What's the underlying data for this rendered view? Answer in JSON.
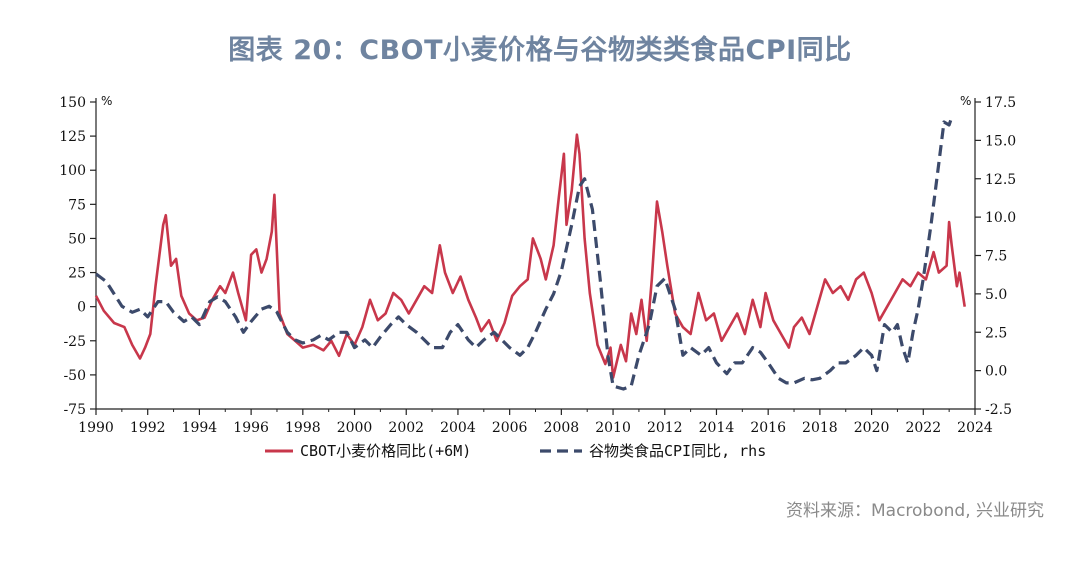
{
  "title": "图表 20：CBOT小麦价格与谷物类类食品CPI同比",
  "source": "资料来源：Macrobond, 兴业研究",
  "chart_data": {
    "type": "line",
    "left_axis": {
      "unit": "%",
      "ylim": [
        -75,
        150
      ],
      "ticks": [
        150,
        125,
        100,
        75,
        50,
        25,
        0,
        -25,
        -50,
        -75
      ]
    },
    "right_axis": {
      "unit": "%",
      "ylim": [
        -2.5,
        17.5
      ],
      "ticks": [
        17.5,
        15.0,
        12.5,
        10.0,
        7.5,
        5.0,
        2.5,
        0.0,
        -2.5
      ]
    },
    "x_axis": {
      "xlim": [
        1990,
        2024
      ],
      "ticks": [
        1990,
        1992,
        1994,
        1996,
        1998,
        2000,
        2002,
        2004,
        2006,
        2008,
        2010,
        2012,
        2014,
        2016,
        2018,
        2020,
        2022,
        2024
      ]
    },
    "grid": false,
    "legend_position": "bottom",
    "colors": {
      "wheat": "#c8374b",
      "cpi": "#3c4a6b"
    },
    "series": [
      {
        "name": "CBOT小麦价格同比(+6M)",
        "axis": "left",
        "style": "solid",
        "points": [
          [
            1990,
            8
          ],
          [
            1990.3,
            -3
          ],
          [
            1990.7,
            -12
          ],
          [
            1991.1,
            -15
          ],
          [
            1991.4,
            -28
          ],
          [
            1991.7,
            -38
          ],
          [
            1991.9,
            -30
          ],
          [
            1992.1,
            -20
          ],
          [
            1992.3,
            15
          ],
          [
            1992.6,
            60
          ],
          [
            1992.7,
            67
          ],
          [
            1992.9,
            30
          ],
          [
            1993.1,
            35
          ],
          [
            1993.3,
            8
          ],
          [
            1993.6,
            -5
          ],
          [
            1993.9,
            -10
          ],
          [
            1994.2,
            -8
          ],
          [
            1994.5,
            5
          ],
          [
            1994.8,
            15
          ],
          [
            1995.0,
            10
          ],
          [
            1995.3,
            25
          ],
          [
            1995.5,
            10
          ],
          [
            1995.8,
            -10
          ],
          [
            1996.0,
            38
          ],
          [
            1996.2,
            42
          ],
          [
            1996.4,
            25
          ],
          [
            1996.6,
            35
          ],
          [
            1996.8,
            55
          ],
          [
            1996.9,
            82
          ],
          [
            1997.1,
            -5
          ],
          [
            1997.4,
            -20
          ],
          [
            1997.7,
            -25
          ],
          [
            1998.0,
            -30
          ],
          [
            1998.4,
            -28
          ],
          [
            1998.8,
            -32
          ],
          [
            1999.1,
            -25
          ],
          [
            1999.4,
            -36
          ],
          [
            1999.7,
            -20
          ],
          [
            2000.0,
            -28
          ],
          [
            2000.3,
            -15
          ],
          [
            2000.6,
            5
          ],
          [
            2000.9,
            -10
          ],
          [
            2001.2,
            -5
          ],
          [
            2001.5,
            10
          ],
          [
            2001.8,
            5
          ],
          [
            2002.1,
            -5
          ],
          [
            2002.4,
            5
          ],
          [
            2002.7,
            15
          ],
          [
            2003.0,
            10
          ],
          [
            2003.3,
            45
          ],
          [
            2003.5,
            25
          ],
          [
            2003.8,
            10
          ],
          [
            2004.1,
            22
          ],
          [
            2004.4,
            5
          ],
          [
            2004.7,
            -8
          ],
          [
            2004.9,
            -18
          ],
          [
            2005.2,
            -10
          ],
          [
            2005.5,
            -25
          ],
          [
            2005.8,
            -12
          ],
          [
            2006.1,
            8
          ],
          [
            2006.4,
            15
          ],
          [
            2006.7,
            20
          ],
          [
            2006.9,
            50
          ],
          [
            2007.2,
            35
          ],
          [
            2007.4,
            20
          ],
          [
            2007.7,
            45
          ],
          [
            2007.9,
            80
          ],
          [
            2008.1,
            112
          ],
          [
            2008.2,
            60
          ],
          [
            2008.4,
            85
          ],
          [
            2008.6,
            126
          ],
          [
            2008.7,
            112
          ],
          [
            2008.9,
            50
          ],
          [
            2009.1,
            10
          ],
          [
            2009.4,
            -28
          ],
          [
            2009.7,
            -42
          ],
          [
            2009.9,
            -30
          ],
          [
            2010.0,
            -52
          ],
          [
            2010.3,
            -28
          ],
          [
            2010.5,
            -40
          ],
          [
            2010.7,
            -5
          ],
          [
            2010.9,
            -20
          ],
          [
            2011.1,
            5
          ],
          [
            2011.3,
            -25
          ],
          [
            2011.5,
            20
          ],
          [
            2011.7,
            77
          ],
          [
            2011.9,
            55
          ],
          [
            2012.1,
            30
          ],
          [
            2012.4,
            -5
          ],
          [
            2012.7,
            -15
          ],
          [
            2013.0,
            -20
          ],
          [
            2013.3,
            10
          ],
          [
            2013.6,
            -10
          ],
          [
            2013.9,
            -5
          ],
          [
            2014.2,
            -25
          ],
          [
            2014.5,
            -15
          ],
          [
            2014.8,
            -5
          ],
          [
            2015.1,
            -20
          ],
          [
            2015.4,
            5
          ],
          [
            2015.7,
            -15
          ],
          [
            2015.9,
            10
          ],
          [
            2016.2,
            -10
          ],
          [
            2016.5,
            -20
          ],
          [
            2016.8,
            -30
          ],
          [
            2017.0,
            -15
          ],
          [
            2017.3,
            -8
          ],
          [
            2017.6,
            -20
          ],
          [
            2017.9,
            0
          ],
          [
            2018.2,
            20
          ],
          [
            2018.5,
            10
          ],
          [
            2018.8,
            15
          ],
          [
            2019.1,
            5
          ],
          [
            2019.4,
            20
          ],
          [
            2019.7,
            25
          ],
          [
            2020.0,
            10
          ],
          [
            2020.3,
            -10
          ],
          [
            2020.6,
            0
          ],
          [
            2020.9,
            10
          ],
          [
            2021.2,
            20
          ],
          [
            2021.5,
            15
          ],
          [
            2021.8,
            25
          ],
          [
            2022.1,
            20
          ],
          [
            2022.4,
            40
          ],
          [
            2022.6,
            25
          ],
          [
            2022.9,
            30
          ],
          [
            2023.0,
            62
          ],
          [
            2023.1,
            45
          ],
          [
            2023.3,
            15
          ],
          [
            2023.4,
            25
          ],
          [
            2023.6,
            0
          ]
        ]
      },
      {
        "name": "谷物类食品CPI同比, rhs",
        "axis": "right",
        "style": "dashed",
        "points": [
          [
            1990,
            6.3
          ],
          [
            1990.4,
            5.8
          ],
          [
            1990.7,
            5.0
          ],
          [
            1991.0,
            4.2
          ],
          [
            1991.4,
            3.8
          ],
          [
            1991.7,
            4.0
          ],
          [
            1992.0,
            3.5
          ],
          [
            1992.4,
            4.5
          ],
          [
            1992.7,
            4.5
          ],
          [
            1993.0,
            3.8
          ],
          [
            1993.4,
            3.2
          ],
          [
            1993.7,
            3.5
          ],
          [
            1994.0,
            3.0
          ],
          [
            1994.4,
            4.5
          ],
          [
            1994.7,
            4.8
          ],
          [
            1995.0,
            4.5
          ],
          [
            1995.4,
            3.5
          ],
          [
            1995.7,
            2.5
          ],
          [
            1996.0,
            3.2
          ],
          [
            1996.4,
            4.0
          ],
          [
            1996.7,
            4.2
          ],
          [
            1997.0,
            3.8
          ],
          [
            1997.4,
            2.5
          ],
          [
            1997.7,
            2.0
          ],
          [
            1998.0,
            1.8
          ],
          [
            1998.4,
            2.0
          ],
          [
            1998.7,
            2.3
          ],
          [
            1999.0,
            2.0
          ],
          [
            1999.4,
            2.5
          ],
          [
            1999.7,
            2.5
          ],
          [
            2000.0,
            1.5
          ],
          [
            2000.4,
            2.0
          ],
          [
            2000.7,
            1.5
          ],
          [
            2001.0,
            2.2
          ],
          [
            2001.4,
            3.0
          ],
          [
            2001.7,
            3.5
          ],
          [
            2002.0,
            3.0
          ],
          [
            2002.4,
            2.5
          ],
          [
            2002.7,
            2.0
          ],
          [
            2003.0,
            1.5
          ],
          [
            2003.4,
            1.5
          ],
          [
            2003.7,
            2.5
          ],
          [
            2004.0,
            3.0
          ],
          [
            2004.4,
            2.0
          ],
          [
            2004.7,
            1.5
          ],
          [
            2005.0,
            2.0
          ],
          [
            2005.4,
            2.5
          ],
          [
            2005.7,
            2.0
          ],
          [
            2006.0,
            1.5
          ],
          [
            2006.4,
            1.0
          ],
          [
            2006.7,
            1.5
          ],
          [
            2007.0,
            2.5
          ],
          [
            2007.4,
            4.0
          ],
          [
            2007.7,
            5.0
          ],
          [
            2008.0,
            6.5
          ],
          [
            2008.4,
            9.5
          ],
          [
            2008.7,
            12.0
          ],
          [
            2008.9,
            12.5
          ],
          [
            2009.2,
            10.5
          ],
          [
            2009.5,
            6.0
          ],
          [
            2009.8,
            1.0
          ],
          [
            2010.0,
            -1.0
          ],
          [
            2010.4,
            -1.2
          ],
          [
            2010.7,
            -1.0
          ],
          [
            2011.0,
            1.0
          ],
          [
            2011.4,
            3.0
          ],
          [
            2011.7,
            5.5
          ],
          [
            2012.0,
            6.0
          ],
          [
            2012.4,
            4.0
          ],
          [
            2012.7,
            1.0
          ],
          [
            2013.0,
            1.5
          ],
          [
            2013.4,
            1.0
          ],
          [
            2013.7,
            1.5
          ],
          [
            2014.0,
            0.5
          ],
          [
            2014.4,
            -0.2
          ],
          [
            2014.7,
            0.5
          ],
          [
            2015.0,
            0.5
          ],
          [
            2015.4,
            1.5
          ],
          [
            2015.7,
            1.2
          ],
          [
            2016.0,
            0.5
          ],
          [
            2016.4,
            -0.5
          ],
          [
            2016.7,
            -0.8
          ],
          [
            2017.0,
            -0.8
          ],
          [
            2017.4,
            -0.5
          ],
          [
            2017.7,
            -0.6
          ],
          [
            2018.0,
            -0.5
          ],
          [
            2018.4,
            0.0
          ],
          [
            2018.7,
            0.5
          ],
          [
            2019.0,
            0.5
          ],
          [
            2019.4,
            1.0
          ],
          [
            2019.7,
            1.5
          ],
          [
            2020.0,
            1.0
          ],
          [
            2020.2,
            0.0
          ],
          [
            2020.5,
            3.0
          ],
          [
            2020.8,
            2.5
          ],
          [
            2021.0,
            3.0
          ],
          [
            2021.2,
            1.5
          ],
          [
            2021.4,
            0.5
          ],
          [
            2021.6,
            2.5
          ],
          [
            2021.8,
            4.0
          ],
          [
            2022.0,
            6.0
          ],
          [
            2022.3,
            9.5
          ],
          [
            2022.6,
            13.5
          ],
          [
            2022.8,
            16.2
          ],
          [
            2023.0,
            16.0
          ],
          [
            2023.1,
            16.5
          ]
        ]
      }
    ]
  }
}
